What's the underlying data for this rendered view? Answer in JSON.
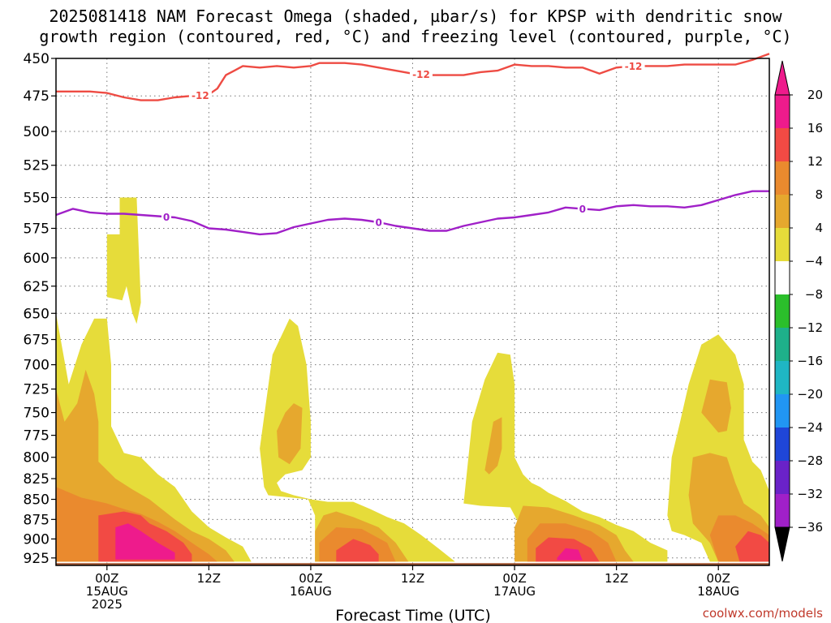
{
  "title_lines": [
    "2025081418 NAM Forecast Omega (shaded, µbar/s) for KPSP with dendritic snow",
    "growth region (contoured, red, °C) and freezing level (contoured, purple, °C)"
  ],
  "credit": "coolwx.com/models",
  "colors": {
    "w4_8": "#e6dc3a",
    "w8_12": "#e6a82e",
    "w12_16": "#ea8a2e",
    "w16_20": "#f24a44",
    "w20p": "#ee1b8c",
    "ground": "#a0522d",
    "dgz": "#ee4b43",
    "freezing": "#a020c8"
  },
  "chart_data": {
    "type": "heatmap",
    "xlabel": "Forecast Time (UTC)",
    "ylabel": "",
    "x_range_hours": [
      -6,
      78
    ],
    "ylim_hpa": [
      450,
      935
    ],
    "y_ticks": [
      450,
      475,
      500,
      525,
      550,
      575,
      600,
      625,
      650,
      675,
      700,
      725,
      750,
      775,
      800,
      825,
      850,
      875,
      900,
      925
    ],
    "x_ticks": [
      {
        "hour": 0,
        "label": "00Z",
        "sub": "15AUG",
        "sub2": "2025"
      },
      {
        "hour": 12,
        "label": "12Z",
        "sub": "",
        "sub2": ""
      },
      {
        "hour": 24,
        "label": "00Z",
        "sub": "16AUG",
        "sub2": ""
      },
      {
        "hour": 36,
        "label": "12Z",
        "sub": "",
        "sub2": ""
      },
      {
        "hour": 48,
        "label": "00Z",
        "sub": "17AUG",
        "sub2": ""
      },
      {
        "hour": 60,
        "label": "12Z",
        "sub": "",
        "sub2": ""
      },
      {
        "hour": 72,
        "label": "00Z",
        "sub": "18AUG",
        "sub2": ""
      }
    ],
    "grid": true,
    "colorbar": {
      "labels": [
        "20",
        "16",
        "12",
        "8",
        "4",
        "−4",
        "−8",
        "−12",
        "−16",
        "−20",
        "−24",
        "−28",
        "−32",
        "−36"
      ],
      "band_colors": [
        "#ee1b8c",
        "#f24a44",
        "#ea8a2e",
        "#e6a82e",
        "#e6dc3a",
        "#ffffff",
        "#2bbf2b",
        "#1eb08a",
        "#1fb6c4",
        "#2196f3",
        "#1f46d8",
        "#6a22c8",
        "#a020c8",
        "#a8a8a8"
      ],
      "top_triangle_color": "#ee1b8c",
      "bottom_triangle_color": "#000000"
    },
    "contour_minus12": {
      "hours": [
        -6,
        -4,
        -2,
        0,
        2,
        4,
        6,
        8,
        10,
        12,
        13,
        14,
        15,
        16,
        18,
        20,
        22,
        24,
        25,
        26,
        28,
        30,
        32,
        34,
        36,
        38,
        40,
        42,
        44,
        46,
        48,
        50,
        52,
        54,
        56,
        58,
        60,
        62,
        64,
        66,
        68,
        70,
        72,
        74,
        76,
        78
      ],
      "hpa": [
        472,
        472,
        472,
        473,
        476,
        478,
        478,
        476,
        475,
        474,
        470,
        461,
        458,
        455,
        456,
        455,
        456,
        455,
        453,
        453,
        453,
        454,
        456,
        458,
        460,
        461,
        461,
        461,
        459,
        458,
        454,
        455,
        455,
        456,
        456,
        460,
        456,
        455,
        455,
        455,
        454,
        454,
        454,
        454,
        451,
        447
      ],
      "labels": [
        {
          "hour": 11,
          "text": "-12"
        },
        {
          "hour": 37,
          "text": "-12"
        },
        {
          "hour": 62,
          "text": "-12"
        }
      ]
    },
    "contour_zero": {
      "hours": [
        -6,
        -4,
        -2,
        0,
        2,
        4,
        6,
        8,
        10,
        12,
        14,
        16,
        18,
        20,
        22,
        24,
        26,
        28,
        30,
        32,
        34,
        36,
        38,
        40,
        42,
        44,
        46,
        48,
        50,
        52,
        54,
        56,
        58,
        60,
        62,
        64,
        66,
        68,
        70,
        72,
        74,
        76,
        78
      ],
      "hpa": [
        564,
        559,
        562,
        563,
        563,
        564,
        565,
        566,
        569,
        575,
        576,
        578,
        580,
        579,
        574,
        571,
        568,
        567,
        568,
        570,
        573,
        575,
        577,
        577,
        573,
        570,
        567,
        566,
        564,
        562,
        558,
        559,
        560,
        557,
        556,
        557,
        557,
        558,
        556,
        552,
        548,
        545,
        545
      ],
      "labels": [
        {
          "hour": 7,
          "text": "0"
        },
        {
          "hour": 32,
          "text": "0"
        },
        {
          "hour": 56,
          "text": "0"
        }
      ]
    },
    "omega_regions": [
      {
        "level": "4-8",
        "points": [
          [
            -6,
            650
          ],
          [
            -4.5,
            720
          ],
          [
            -3,
            680
          ],
          [
            -1.5,
            655
          ],
          [
            0,
            655
          ],
          [
            0.5,
            700
          ],
          [
            0.5,
            765
          ],
          [
            2,
            795
          ],
          [
            4,
            800
          ],
          [
            6,
            820
          ],
          [
            8,
            835
          ],
          [
            10,
            865
          ],
          [
            12,
            885
          ],
          [
            14,
            898
          ],
          [
            16,
            910
          ],
          [
            17,
            930
          ],
          [
            -6,
            930
          ]
        ]
      },
      {
        "level": "4-8",
        "points": [
          [
            0,
            580
          ],
          [
            1.5,
            580
          ],
          [
            1.5,
            550
          ],
          [
            3.5,
            550
          ],
          [
            4,
            640
          ],
          [
            3.5,
            660
          ],
          [
            3,
            650
          ],
          [
            2.3,
            625
          ],
          [
            1.8,
            638
          ],
          [
            0,
            635
          ]
        ]
      },
      {
        "level": "8-12",
        "points": [
          [
            -6,
            725
          ],
          [
            -5,
            760
          ],
          [
            -3.5,
            740
          ],
          [
            -2.5,
            705
          ],
          [
            -1.5,
            730
          ],
          [
            -1,
            760
          ],
          [
            -1,
            805
          ],
          [
            1,
            825
          ],
          [
            3,
            838
          ],
          [
            5,
            850
          ],
          [
            8,
            875
          ],
          [
            10,
            890
          ],
          [
            12,
            900
          ],
          [
            14,
            915
          ],
          [
            15,
            930
          ],
          [
            -6,
            930
          ]
        ]
      },
      {
        "level": "12-16",
        "points": [
          [
            -6,
            835
          ],
          [
            -3,
            848
          ],
          [
            0,
            855
          ],
          [
            2,
            862
          ],
          [
            4,
            868
          ],
          [
            6,
            878
          ],
          [
            8,
            890
          ],
          [
            10,
            905
          ],
          [
            12,
            920
          ],
          [
            13,
            930
          ],
          [
            -6,
            930
          ]
        ]
      },
      {
        "level": "16-20",
        "points": [
          [
            -1,
            870
          ],
          [
            2,
            865
          ],
          [
            4,
            870
          ],
          [
            5,
            880
          ],
          [
            7,
            890
          ],
          [
            9,
            905
          ],
          [
            10,
            920
          ],
          [
            10,
            930
          ],
          [
            -1,
            930
          ],
          [
            -1,
            905
          ]
        ]
      },
      {
        "level": "20+",
        "points": [
          [
            1,
            885
          ],
          [
            2.5,
            880
          ],
          [
            4,
            890
          ],
          [
            6,
            905
          ],
          [
            8,
            918
          ],
          [
            8,
            927
          ],
          [
            1,
            927
          ]
        ]
      },
      {
        "level": "4-8",
        "points": [
          [
            18,
            790
          ],
          [
            19.5,
            690
          ],
          [
            21.5,
            655
          ],
          [
            22.5,
            662
          ],
          [
            23.5,
            700
          ],
          [
            24,
            760
          ],
          [
            24,
            800
          ],
          [
            23,
            815
          ],
          [
            21,
            820
          ],
          [
            20,
            830
          ],
          [
            20.5,
            840
          ],
          [
            22,
            845
          ],
          [
            24,
            850
          ],
          [
            26,
            853
          ],
          [
            29,
            853
          ],
          [
            31,
            862
          ],
          [
            33,
            872
          ],
          [
            35,
            880
          ],
          [
            37,
            895
          ],
          [
            39,
            912
          ],
          [
            41,
            930
          ],
          [
            24.5,
            930
          ],
          [
            24.5,
            870
          ],
          [
            23.7,
            850
          ],
          [
            19,
            845
          ],
          [
            18.5,
            835
          ]
        ]
      },
      {
        "level": "8-12",
        "points": [
          [
            20,
            770
          ],
          [
            21,
            750
          ],
          [
            22,
            740
          ],
          [
            23,
            745
          ],
          [
            22.8,
            790
          ],
          [
            21.5,
            808
          ],
          [
            20.2,
            800
          ]
        ]
      },
      {
        "level": "8-12",
        "points": [
          [
            24.5,
            890
          ],
          [
            25.5,
            870
          ],
          [
            27,
            865
          ],
          [
            29,
            872
          ],
          [
            32,
            885
          ],
          [
            34,
            905
          ],
          [
            35.5,
            930
          ],
          [
            24.5,
            930
          ]
        ]
      },
      {
        "level": "12-16",
        "points": [
          [
            25,
            905
          ],
          [
            27,
            885
          ],
          [
            30,
            887
          ],
          [
            33,
            905
          ],
          [
            34,
            930
          ],
          [
            25,
            930
          ]
        ]
      },
      {
        "level": "16-20",
        "points": [
          [
            27,
            915
          ],
          [
            29,
            900
          ],
          [
            31,
            908
          ],
          [
            32,
            920
          ],
          [
            32,
            930
          ],
          [
            27,
            930
          ]
        ]
      },
      {
        "level": "4-8",
        "points": [
          [
            42,
            855
          ],
          [
            43,
            760
          ],
          [
            44.5,
            715
          ],
          [
            46,
            688
          ],
          [
            47.5,
            690
          ],
          [
            48,
            720
          ],
          [
            48,
            800
          ],
          [
            49,
            820
          ],
          [
            50,
            830
          ],
          [
            51,
            835
          ],
          [
            52,
            842
          ],
          [
            54,
            852
          ],
          [
            56,
            865
          ],
          [
            58,
            872
          ],
          [
            60,
            882
          ],
          [
            62,
            890
          ],
          [
            64,
            905
          ],
          [
            66,
            915
          ],
          [
            66,
            930
          ],
          [
            50,
            930
          ],
          [
            49,
            905
          ],
          [
            48.5,
            880
          ],
          [
            47.5,
            860
          ],
          [
            44,
            858
          ]
        ]
      },
      {
        "level": "8-12",
        "points": [
          [
            44.5,
            815
          ],
          [
            45.5,
            760
          ],
          [
            46.5,
            755
          ],
          [
            46.5,
            790
          ],
          [
            46,
            810
          ],
          [
            45,
            820
          ]
        ]
      },
      {
        "level": "8-12",
        "points": [
          [
            48,
            885
          ],
          [
            49,
            858
          ],
          [
            52,
            860
          ],
          [
            55,
            870
          ],
          [
            58,
            882
          ],
          [
            60,
            895
          ],
          [
            61,
            915
          ],
          [
            62,
            930
          ],
          [
            48,
            930
          ]
        ]
      },
      {
        "level": "12-16",
        "points": [
          [
            49.5,
            900
          ],
          [
            51,
            880
          ],
          [
            54,
            880
          ],
          [
            57,
            890
          ],
          [
            59,
            905
          ],
          [
            60,
            930
          ],
          [
            49.5,
            930
          ]
        ]
      },
      {
        "level": "16-20",
        "points": [
          [
            50.5,
            912
          ],
          [
            52,
            898
          ],
          [
            55,
            900
          ],
          [
            57,
            912
          ],
          [
            58,
            930
          ],
          [
            50.5,
            930
          ]
        ]
      },
      {
        "level": "20+",
        "points": [
          [
            53,
            925
          ],
          [
            54,
            912
          ],
          [
            55.5,
            914
          ],
          [
            56,
            928
          ],
          [
            53,
            928
          ]
        ]
      },
      {
        "level": "4-8",
        "points": [
          [
            66,
            870
          ],
          [
            66.5,
            800
          ],
          [
            67.5,
            760
          ],
          [
            68.5,
            720
          ],
          [
            70,
            680
          ],
          [
            72,
            670
          ],
          [
            74,
            690
          ],
          [
            75,
            720
          ],
          [
            75,
            780
          ],
          [
            76,
            805
          ],
          [
            77,
            815
          ],
          [
            78,
            840
          ],
          [
            78,
            930
          ],
          [
            71,
            930
          ],
          [
            70,
            905
          ],
          [
            68,
            895
          ],
          [
            66.5,
            890
          ]
        ]
      },
      {
        "level": "8-12",
        "points": [
          [
            68.5,
            845
          ],
          [
            69,
            800
          ],
          [
            71,
            795
          ],
          [
            73,
            800
          ],
          [
            74,
            830
          ],
          [
            75,
            855
          ],
          [
            77,
            870
          ],
          [
            78,
            885
          ],
          [
            78,
            930
          ],
          [
            72,
            930
          ],
          [
            71,
            905
          ],
          [
            69,
            880
          ]
        ]
      },
      {
        "level": "8-12",
        "points": [
          [
            70,
            750
          ],
          [
            71,
            715
          ],
          [
            73,
            718
          ],
          [
            73.5,
            745
          ],
          [
            73,
            770
          ],
          [
            72,
            772
          ]
        ]
      },
      {
        "level": "12-16",
        "points": [
          [
            71,
            895
          ],
          [
            72,
            870
          ],
          [
            74,
            870
          ],
          [
            76,
            880
          ],
          [
            78,
            895
          ],
          [
            78,
            930
          ],
          [
            72,
            930
          ]
        ]
      },
      {
        "level": "16-20",
        "points": [
          [
            74,
            910
          ],
          [
            75.5,
            890
          ],
          [
            77,
            895
          ],
          [
            78,
            905
          ],
          [
            78,
            930
          ],
          [
            74.5,
            930
          ]
        ]
      }
    ],
    "ground_hpa": 932
  }
}
